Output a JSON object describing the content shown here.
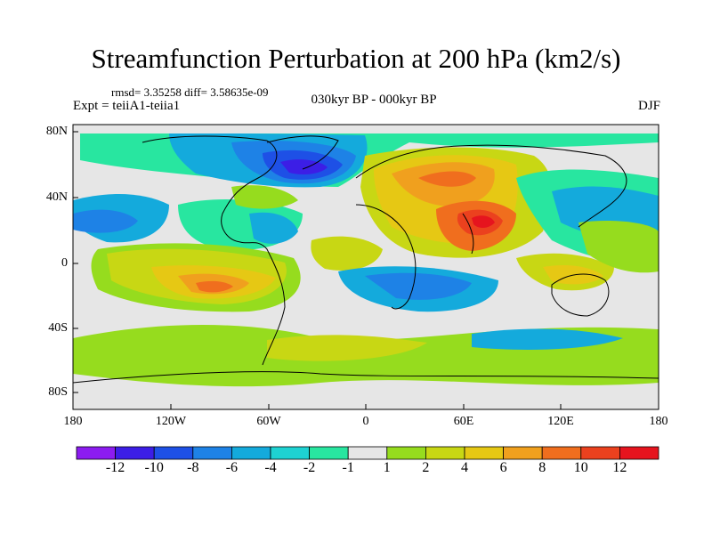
{
  "title": "Streamfunction Perturbation at 200 hPa (km2/s)",
  "stats": "rmsd= 3.35258 diff= 3.58635e-09",
  "experiment": "Expt = teiiA1-teiia1",
  "period": "030kyr BP - 000kyr BP",
  "season": "DJF",
  "lat_labels": [
    "80N",
    "40N",
    "0",
    "40S",
    "80S"
  ],
  "lon_labels": [
    "180",
    "120W",
    "60W",
    "0",
    "60E",
    "120E",
    "180"
  ],
  "colorbar": {
    "labels": [
      "-12",
      "-10",
      "-8",
      "-6",
      "-4",
      "-2",
      "-1",
      "1",
      "2",
      "4",
      "6",
      "8",
      "10",
      "12"
    ],
    "colors": [
      "#8c1cf0",
      "#3c1ee6",
      "#1e50e6",
      "#1e82e6",
      "#14aadc",
      "#1ed2d2",
      "#28e6a0",
      "#e6e6e6",
      "#96dc1e",
      "#c8d714",
      "#e6c814",
      "#f0a01e",
      "#f06e1e",
      "#eb411e",
      "#e6141e"
    ]
  },
  "colors": {
    "land_outline": "#000000",
    "neutral_fill": "#e6e6e6"
  }
}
